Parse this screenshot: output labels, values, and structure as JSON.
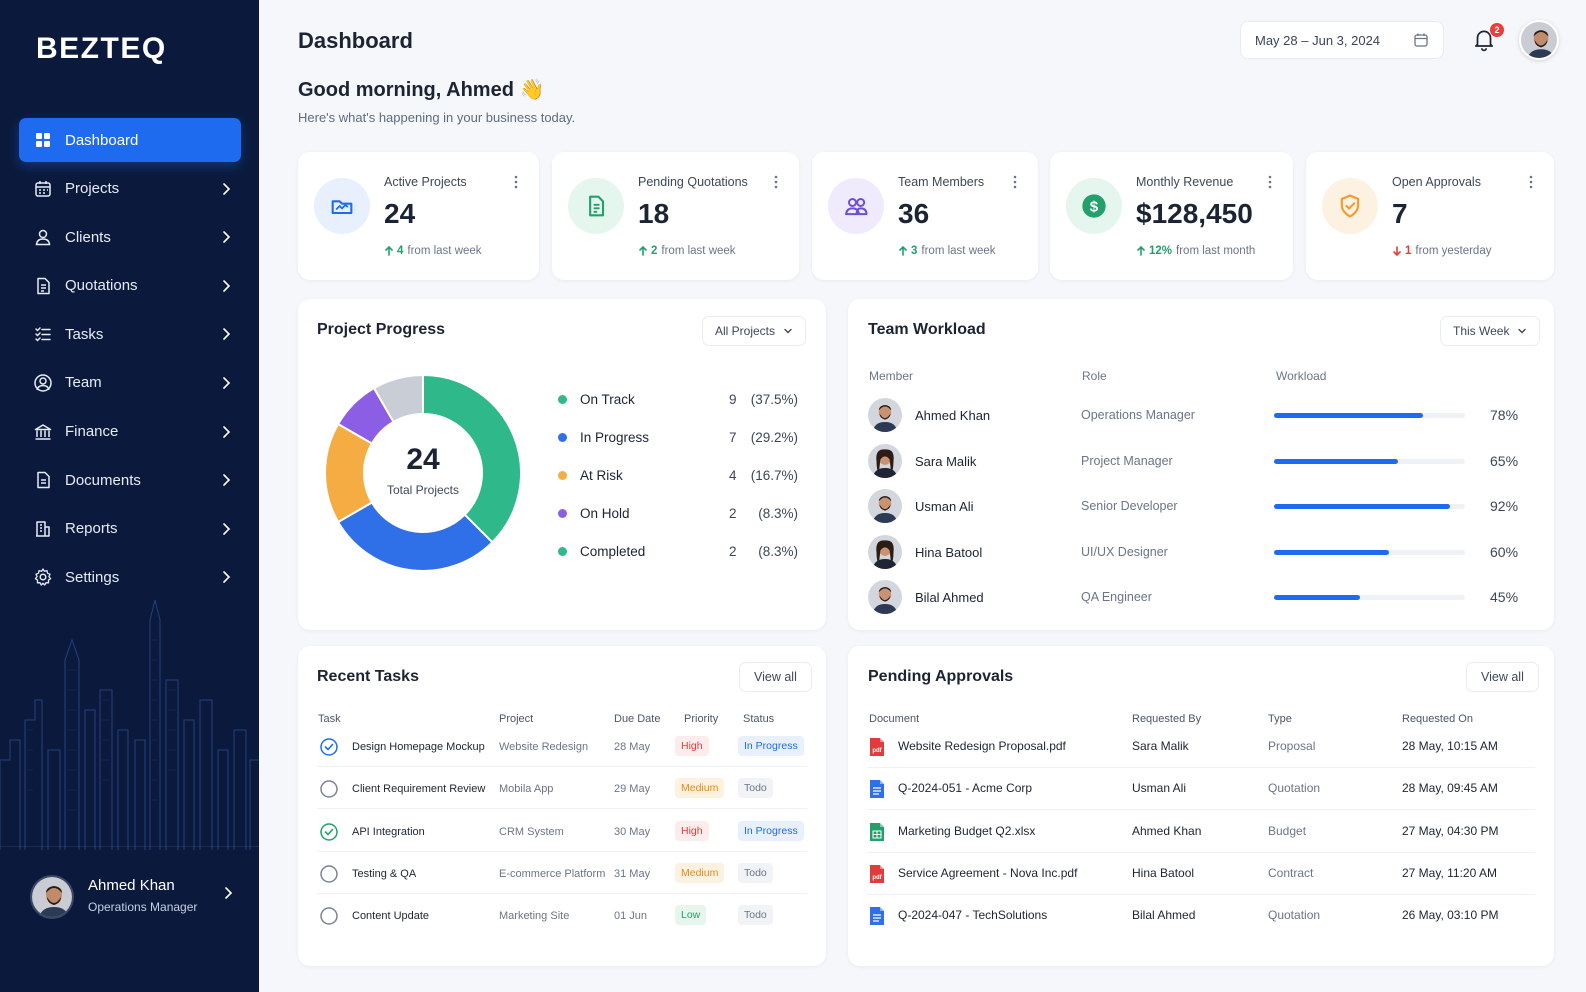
{
  "brand": "BEZTEQ",
  "sidebar": {
    "items": [
      {
        "label": "Dashboard",
        "icon": "grid-icon",
        "active": true
      },
      {
        "label": "Projects",
        "icon": "calendar-icon"
      },
      {
        "label": "Clients",
        "icon": "user-icon"
      },
      {
        "label": "Quotations",
        "icon": "document-icon"
      },
      {
        "label": "Tasks",
        "icon": "list-icon"
      },
      {
        "label": "Team",
        "icon": "team-icon"
      },
      {
        "label": "Finance",
        "icon": "bank-icon"
      },
      {
        "label": "Documents",
        "icon": "file-icon"
      },
      {
        "label": "Reports",
        "icon": "report-icon"
      },
      {
        "label": "Settings",
        "icon": "gear-icon"
      }
    ],
    "user": {
      "name": "Ahmed Khan",
      "role": "Operations Manager"
    }
  },
  "header": {
    "title": "Dashboard",
    "greeting": "Good morning, Ahmed 👋",
    "subtitle": "Here's what's happening in your business today.",
    "date_range": "May 28 – Jun 3, 2024",
    "notification_count": "2"
  },
  "kpis": [
    {
      "label": "Active Projects",
      "value": "24",
      "change": "4",
      "suffix": "from last week",
      "direction": "up",
      "color": "#1f6bf0",
      "bg": "#e8f0fd",
      "icon": "folder-chart-icon"
    },
    {
      "label": "Pending Quotations",
      "value": "18",
      "change": "2",
      "suffix": "from last week",
      "direction": "up",
      "color": "#22a06b",
      "bg": "#e5f6ee",
      "icon": "document-icon"
    },
    {
      "label": "Team Members",
      "value": "36",
      "change": "3",
      "suffix": "from last week",
      "direction": "up",
      "color": "#6c4ed8",
      "bg": "#efeafc",
      "icon": "team-icon"
    },
    {
      "label": "Monthly Revenue",
      "value": "$128,450",
      "change": "12%",
      "suffix": "from last month",
      "direction": "up",
      "color": "#22a06b",
      "bg": "#e5f6ee",
      "icon": "dollar-icon"
    },
    {
      "label": "Open Approvals",
      "value": "7",
      "change": "1",
      "suffix": "from yesterday",
      "direction": "down",
      "color": "#f39a2c",
      "bg": "#fdf1e2",
      "icon": "shield-check-icon"
    }
  ],
  "project_progress": {
    "title": "Project Progress",
    "filter": "All Projects",
    "total": "24",
    "total_label": "Total Projects",
    "legend": [
      {
        "label": "On Track",
        "count": "9",
        "pct": "(37.5%)",
        "color": "#2fb98a"
      },
      {
        "label": "In Progress",
        "count": "7",
        "pct": "(29.2%)",
        "color": "#2f6fe8"
      },
      {
        "label": "At Risk",
        "count": "4",
        "pct": "(16.7%)",
        "color": "#f5ac42"
      },
      {
        "label": "On Hold",
        "count": "2",
        "pct": "(8.3%)",
        "color": "#8c5ee6"
      },
      {
        "label": "Completed",
        "count": "2",
        "pct": "(8.3%)",
        "color": "#2fb98a"
      }
    ]
  },
  "chart_data": {
    "type": "pie",
    "categories": [
      "On Track",
      "In Progress",
      "At Risk",
      "On Hold",
      "Completed"
    ],
    "values": [
      9,
      7,
      4,
      2,
      2
    ],
    "colors": [
      "#2fb98a",
      "#2f6fe8",
      "#f5ac42",
      "#8c5ee6",
      "#c9cdd6"
    ],
    "title": "Project Progress"
  },
  "workload": {
    "title": "Team Workload",
    "filter": "This Week",
    "headers": {
      "member": "Member",
      "role": "Role",
      "workload": "Workload"
    },
    "rows": [
      {
        "name": "Ahmed Khan",
        "role": "Operations Manager",
        "pct": "78%",
        "value": 78,
        "gender": "m"
      },
      {
        "name": "Sara Malik",
        "role": "Project Manager",
        "pct": "65%",
        "value": 65,
        "gender": "f"
      },
      {
        "name": "Usman Ali",
        "role": "Senior Developer",
        "pct": "92%",
        "value": 92,
        "gender": "m"
      },
      {
        "name": "Hina Batool",
        "role": "UI/UX Designer",
        "pct": "60%",
        "value": 60,
        "gender": "f"
      },
      {
        "name": "Bilal Ahmed",
        "role": "QA Engineer",
        "pct": "45%",
        "value": 45,
        "gender": "m"
      }
    ]
  },
  "recent_tasks": {
    "title": "Recent Tasks",
    "view_all": "View all",
    "headers": {
      "task": "Task",
      "project": "Project",
      "due": "Due Date",
      "priority": "Priority",
      "status": "Status"
    },
    "rows": [
      {
        "task": "Design Homepage Mockup",
        "project": "Website Redesign",
        "due": "28 May",
        "priority": "High",
        "status": "In Progress",
        "state": "checked-blue"
      },
      {
        "task": "Client Requirement Review",
        "project": "Mobila App",
        "due": "29 May",
        "priority": "Medium",
        "status": "Todo",
        "state": "open"
      },
      {
        "task": "API Integration",
        "project": "CRM System",
        "due": "30 May",
        "priority": "High",
        "status": "In Progress",
        "state": "checked-green"
      },
      {
        "task": "Testing & QA",
        "project": "E-commerce Platform",
        "due": "31 May",
        "priority": "Medium",
        "status": "Todo",
        "state": "open"
      },
      {
        "task": "Content Update",
        "project": "Marketing Site",
        "due": "01 Jun",
        "priority": "Low",
        "status": "Todo",
        "state": "open"
      }
    ]
  },
  "pending_approvals": {
    "title": "Pending Approvals",
    "view_all": "View all",
    "headers": {
      "document": "Document",
      "requested_by": "Requested By",
      "type": "Type",
      "requested_on": "Requested On"
    },
    "rows": [
      {
        "document": "Website Redesign Proposal.pdf",
        "by": "Sara Malik",
        "type": "Proposal",
        "on": "28 May, 10:15 AM",
        "file": "pdf"
      },
      {
        "document": "Q-2024-051 - Acme Corp",
        "by": "Usman Ali",
        "type": "Quotation",
        "on": "28 May, 09:45 AM",
        "file": "doc"
      },
      {
        "document": "Marketing Budget Q2.xlsx",
        "by": "Ahmed Khan",
        "type": "Budget",
        "on": "27 May, 04:30 PM",
        "file": "xls"
      },
      {
        "document": "Service Agreement - Nova Inc.pdf",
        "by": "Hina Batool",
        "type": "Contract",
        "on": "27 May, 11:20 AM",
        "file": "pdf"
      },
      {
        "document": "Q-2024-047 - TechSolutions",
        "by": "Bilal Ahmed",
        "type": "Quotation",
        "on": "26 May, 03:10 PM",
        "file": "doc"
      }
    ]
  }
}
